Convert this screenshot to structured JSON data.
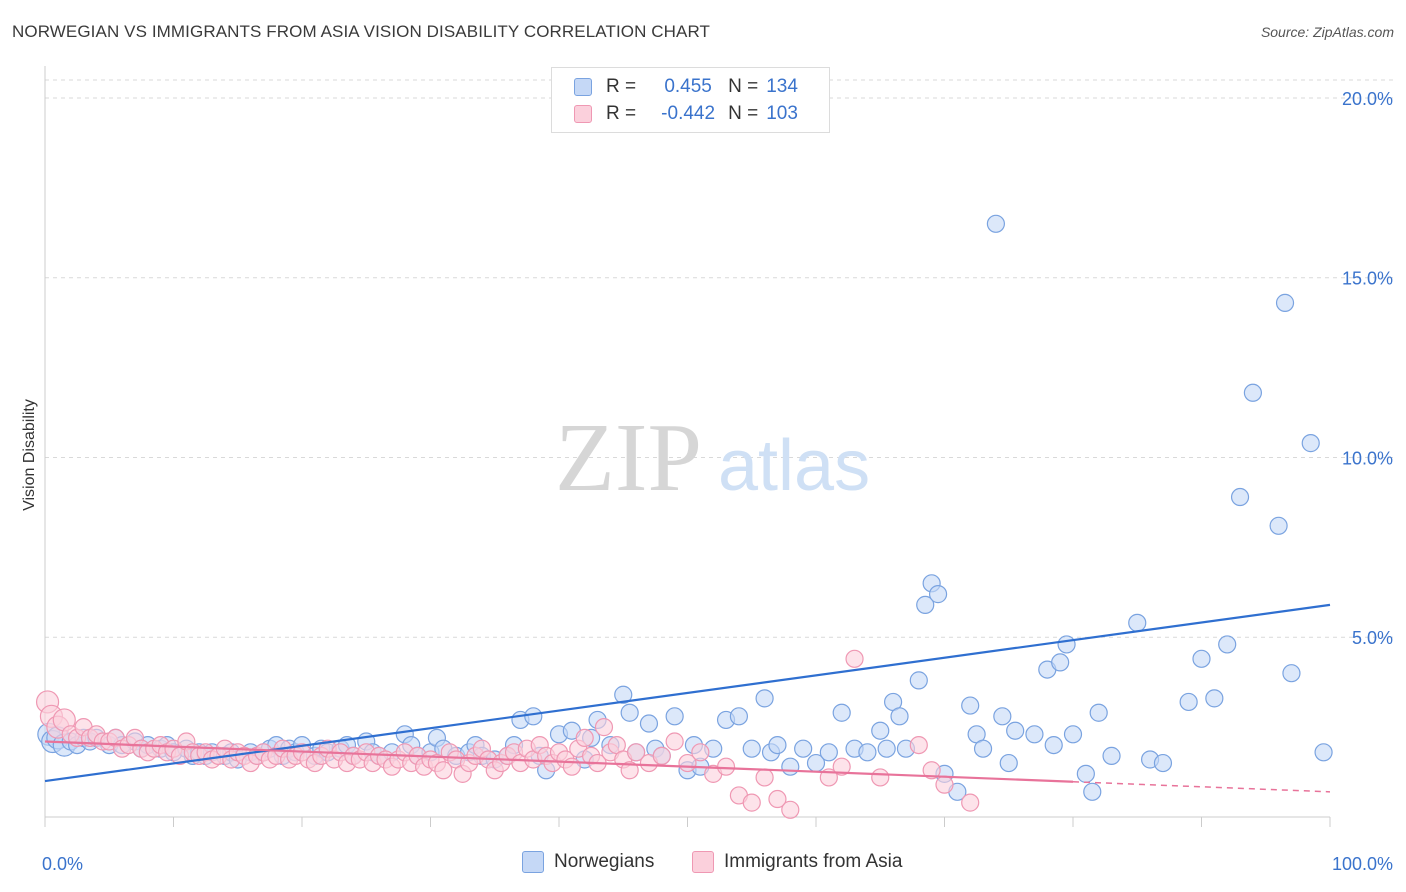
{
  "header": {
    "title": "NORWEGIAN VS IMMIGRANTS FROM ASIA VISION DISABILITY CORRELATION CHART",
    "source": "Source: ZipAtlas.com"
  },
  "watermark": {
    "zip": "ZIP",
    "atlas": "atlas"
  },
  "legend": {
    "r_label": "R =",
    "n_label": "N =",
    "rows": [
      {
        "r": "0.455",
        "n": "134",
        "color": "#7aa3e0"
      },
      {
        "r": "-0.442",
        "n": "103",
        "color": "#ef98b3"
      }
    ]
  },
  "colors": {
    "blue_fill": "#c5d8f6",
    "blue_stroke": "#7aa3e0",
    "blue_line": "#2f6fd0",
    "pink_fill": "#fbd0dc",
    "pink_stroke": "#ef98b3",
    "pink_line": "#e8739a",
    "tick_text": "#3a73cc",
    "grid": "#d9d9d9"
  },
  "chart_data": {
    "type": "scatter",
    "title": "NORWEGIAN VS IMMIGRANTS FROM ASIA VISION DISABILITY CORRELATION CHART",
    "xlabel": "",
    "ylabel": "Vision Disability",
    "xlim": [
      0,
      100
    ],
    "ylim": [
      0,
      20.5
    ],
    "x_tick_labels": [
      "0.0%",
      "100.0%"
    ],
    "y_ticks": [
      5,
      10,
      15,
      20
    ],
    "y_tick_labels": [
      "5.0%",
      "10.0%",
      "15.0%",
      "20.0%"
    ],
    "grid": true,
    "legend_position": "top-center",
    "series": [
      {
        "name": "Norwegians",
        "trend": {
          "x": [
            0,
            100
          ],
          "y": [
            1.0,
            5.9
          ],
          "style": "solid"
        },
        "points": [
          [
            0.3,
            2.3
          ],
          [
            0.6,
            2.1
          ],
          [
            1,
            2.2
          ],
          [
            1.5,
            2.0
          ],
          [
            2,
            2.1
          ],
          [
            2.5,
            2.0
          ],
          [
            3,
            2.2
          ],
          [
            3.5,
            2.1
          ],
          [
            4,
            2.2
          ],
          [
            5,
            2.0
          ],
          [
            5.5,
            2.2
          ],
          [
            6,
            2.0
          ],
          [
            7,
            2.1
          ],
          [
            7.5,
            1.9
          ],
          [
            8,
            2.0
          ],
          [
            9,
            1.9
          ],
          [
            9.5,
            2.0
          ],
          [
            10,
            1.8
          ],
          [
            11,
            1.9
          ],
          [
            11.5,
            1.7
          ],
          [
            12,
            1.8
          ],
          [
            12.5,
            1.7
          ],
          [
            13,
            1.8
          ],
          [
            14,
            1.7
          ],
          [
            14.5,
            1.8
          ],
          [
            15,
            1.6
          ],
          [
            16,
            1.8
          ],
          [
            16.5,
            1.7
          ],
          [
            17,
            1.8
          ],
          [
            17.5,
            1.9
          ],
          [
            18,
            2.0
          ],
          [
            18.5,
            1.7
          ],
          [
            19,
            1.9
          ],
          [
            19.5,
            1.8
          ],
          [
            20,
            2.0
          ],
          [
            21,
            1.7
          ],
          [
            21.5,
            1.9
          ],
          [
            22,
            1.8
          ],
          [
            23,
            1.9
          ],
          [
            23.5,
            2.0
          ],
          [
            24,
            1.7
          ],
          [
            25,
            2.1
          ],
          [
            25.5,
            1.8
          ],
          [
            26,
            1.7
          ],
          [
            27,
            1.8
          ],
          [
            28,
            2.3
          ],
          [
            28.5,
            2.0
          ],
          [
            29,
            1.7
          ],
          [
            30,
            1.8
          ],
          [
            30.5,
            2.2
          ],
          [
            31,
            1.9
          ],
          [
            32,
            1.7
          ],
          [
            33,
            1.8
          ],
          [
            33.5,
            2.0
          ],
          [
            34,
            1.7
          ],
          [
            35,
            1.6
          ],
          [
            36,
            1.7
          ],
          [
            36.5,
            2.0
          ],
          [
            37,
            2.7
          ],
          [
            38,
            2.8
          ],
          [
            38.5,
            1.7
          ],
          [
            39,
            1.3
          ],
          [
            40,
            2.3
          ],
          [
            41,
            2.4
          ],
          [
            42,
            1.6
          ],
          [
            42.5,
            2.2
          ],
          [
            43,
            2.7
          ],
          [
            44,
            2.0
          ],
          [
            45,
            3.4
          ],
          [
            45.5,
            2.9
          ],
          [
            46,
            1.8
          ],
          [
            47,
            2.6
          ],
          [
            47.5,
            1.9
          ],
          [
            48,
            1.7
          ],
          [
            49,
            2.8
          ],
          [
            50,
            1.3
          ],
          [
            50.5,
            2.0
          ],
          [
            51,
            1.4
          ],
          [
            52,
            1.9
          ],
          [
            53,
            2.7
          ],
          [
            54,
            2.8
          ],
          [
            55,
            1.9
          ],
          [
            56,
            3.3
          ],
          [
            56.5,
            1.8
          ],
          [
            57,
            2.0
          ],
          [
            58,
            1.4
          ],
          [
            59,
            1.9
          ],
          [
            60,
            1.5
          ],
          [
            61,
            1.8
          ],
          [
            62,
            2.9
          ],
          [
            63,
            1.9
          ],
          [
            64,
            1.8
          ],
          [
            65,
            2.4
          ],
          [
            65.5,
            1.9
          ],
          [
            66,
            3.2
          ],
          [
            66.5,
            2.8
          ],
          [
            67,
            1.9
          ],
          [
            68,
            3.8
          ],
          [
            68.5,
            5.9
          ],
          [
            69,
            6.5
          ],
          [
            69.5,
            6.2
          ],
          [
            70,
            1.2
          ],
          [
            71,
            0.7
          ],
          [
            72,
            3.1
          ],
          [
            72.5,
            2.3
          ],
          [
            73,
            1.9
          ],
          [
            74,
            16.5
          ],
          [
            74.5,
            2.8
          ],
          [
            75,
            1.5
          ],
          [
            75.5,
            2.4
          ],
          [
            77,
            2.3
          ],
          [
            78,
            4.1
          ],
          [
            78.5,
            2.0
          ],
          [
            79,
            4.3
          ],
          [
            79.5,
            4.8
          ],
          [
            80,
            2.3
          ],
          [
            81,
            1.2
          ],
          [
            81.5,
            0.7
          ],
          [
            82,
            2.9
          ],
          [
            83,
            1.7
          ],
          [
            85,
            5.4
          ],
          [
            86,
            1.6
          ],
          [
            87,
            1.5
          ],
          [
            89,
            3.2
          ],
          [
            90,
            4.4
          ],
          [
            91,
            3.3
          ],
          [
            92,
            4.8
          ],
          [
            93,
            8.9
          ],
          [
            94,
            11.8
          ],
          [
            96,
            8.1
          ],
          [
            96.5,
            14.3
          ],
          [
            97,
            4.0
          ],
          [
            98.5,
            10.4
          ],
          [
            99.5,
            1.8
          ]
        ]
      },
      {
        "name": "Immigrants from Asia",
        "trend": {
          "x": [
            0,
            100
          ],
          "y": [
            2.1,
            0.7
          ],
          "solid_until": 80,
          "style": "solid-then-dashed"
        },
        "points": [
          [
            0.2,
            3.2
          ],
          [
            0.5,
            2.8
          ],
          [
            1,
            2.5
          ],
          [
            1.5,
            2.7
          ],
          [
            2,
            2.3
          ],
          [
            2.5,
            2.2
          ],
          [
            3,
            2.5
          ],
          [
            3.5,
            2.2
          ],
          [
            4,
            2.3
          ],
          [
            4.5,
            2.1
          ],
          [
            5,
            2.1
          ],
          [
            5.5,
            2.2
          ],
          [
            6,
            1.9
          ],
          [
            6.5,
            2.0
          ],
          [
            7,
            2.2
          ],
          [
            7.5,
            1.9
          ],
          [
            8,
            1.8
          ],
          [
            8.5,
            1.9
          ],
          [
            9,
            2.0
          ],
          [
            9.5,
            1.8
          ],
          [
            10,
            1.9
          ],
          [
            10.5,
            1.7
          ],
          [
            11,
            2.1
          ],
          [
            11.5,
            1.8
          ],
          [
            12,
            1.7
          ],
          [
            12.5,
            1.8
          ],
          [
            13,
            1.6
          ],
          [
            13.5,
            1.7
          ],
          [
            14,
            1.9
          ],
          [
            14.5,
            1.6
          ],
          [
            15,
            1.8
          ],
          [
            15.5,
            1.7
          ],
          [
            16,
            1.5
          ],
          [
            16.5,
            1.7
          ],
          [
            17,
            1.8
          ],
          [
            17.5,
            1.6
          ],
          [
            18,
            1.7
          ],
          [
            18.5,
            1.9
          ],
          [
            19,
            1.6
          ],
          [
            19.5,
            1.7
          ],
          [
            20,
            1.8
          ],
          [
            20.5,
            1.6
          ],
          [
            21,
            1.5
          ],
          [
            21.5,
            1.7
          ],
          [
            22,
            1.9
          ],
          [
            22.5,
            1.6
          ],
          [
            23,
            1.8
          ],
          [
            23.5,
            1.5
          ],
          [
            24,
            1.7
          ],
          [
            24.5,
            1.6
          ],
          [
            25,
            1.8
          ],
          [
            25.5,
            1.5
          ],
          [
            26,
            1.7
          ],
          [
            26.5,
            1.6
          ],
          [
            27,
            1.4
          ],
          [
            27.5,
            1.6
          ],
          [
            28,
            1.8
          ],
          [
            28.5,
            1.5
          ],
          [
            29,
            1.7
          ],
          [
            29.5,
            1.4
          ],
          [
            30,
            1.6
          ],
          [
            30.5,
            1.5
          ],
          [
            31,
            1.3
          ],
          [
            31.5,
            1.8
          ],
          [
            32,
            1.6
          ],
          [
            32.5,
            1.2
          ],
          [
            33,
            1.5
          ],
          [
            33.5,
            1.7
          ],
          [
            34,
            1.9
          ],
          [
            34.5,
            1.6
          ],
          [
            35,
            1.3
          ],
          [
            35.5,
            1.5
          ],
          [
            36,
            1.7
          ],
          [
            36.5,
            1.8
          ],
          [
            37,
            1.5
          ],
          [
            37.5,
            1.9
          ],
          [
            38,
            1.6
          ],
          [
            38.5,
            2.0
          ],
          [
            39,
            1.7
          ],
          [
            39.5,
            1.5
          ],
          [
            40,
            1.8
          ],
          [
            40.5,
            1.6
          ],
          [
            41,
            1.4
          ],
          [
            41.5,
            1.9
          ],
          [
            42,
            2.2
          ],
          [
            42.5,
            1.7
          ],
          [
            43,
            1.5
          ],
          [
            43.5,
            2.5
          ],
          [
            44,
            1.8
          ],
          [
            44.5,
            2.0
          ],
          [
            45,
            1.6
          ],
          [
            45.5,
            1.3
          ],
          [
            46,
            1.8
          ],
          [
            47,
            1.5
          ],
          [
            48,
            1.7
          ],
          [
            49,
            2.1
          ],
          [
            50,
            1.5
          ],
          [
            51,
            1.8
          ],
          [
            52,
            1.2
          ],
          [
            53,
            1.4
          ],
          [
            54,
            0.6
          ],
          [
            55,
            0.4
          ],
          [
            56,
            1.1
          ],
          [
            57,
            0.5
          ],
          [
            58,
            0.2
          ],
          [
            61,
            1.1
          ],
          [
            62,
            1.4
          ],
          [
            63,
            4.4
          ],
          [
            65,
            1.1
          ],
          [
            68,
            2.0
          ],
          [
            69,
            1.3
          ],
          [
            70,
            0.9
          ],
          [
            72,
            0.4
          ]
        ]
      }
    ]
  },
  "bottom_legend": [
    {
      "label": "Norwegians",
      "color": "#7aa3e0"
    },
    {
      "label": "Immigrants from Asia",
      "color": "#ef98b3"
    }
  ]
}
